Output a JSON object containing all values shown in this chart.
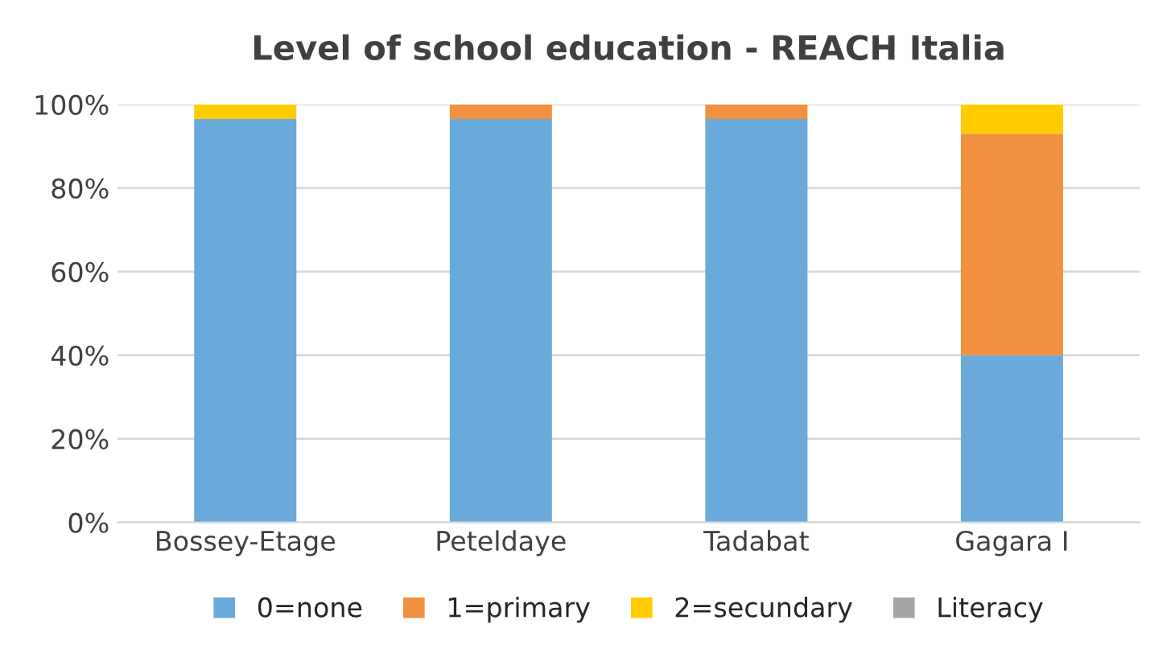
{
  "chart_data": {
    "type": "bar",
    "title": "Level of school education - REACH Italia",
    "stacked": true,
    "categories": [
      "Bossey-Etage",
      "Peteldaye",
      "Tadabat",
      "Gagara I"
    ],
    "series": [
      {
        "name": "0=none",
        "color": "#6aaadb",
        "values": [
          96.5,
          96.5,
          96.5,
          40
        ]
      },
      {
        "name": "1=primary",
        "color": "#f09140",
        "values": [
          null,
          3.5,
          3.5,
          53
        ]
      },
      {
        "name": "2=secundary",
        "color": "#ffcc00",
        "values": [
          3.5,
          null,
          null,
          7
        ]
      },
      {
        "name": "Literacy",
        "color": "#a5a5a5",
        "values": [
          null,
          null,
          null,
          null
        ]
      }
    ],
    "ylim": [
      0,
      100
    ],
    "yticks": [
      {
        "value": 0,
        "label": "0%"
      },
      {
        "value": 20,
        "label": "20%"
      },
      {
        "value": 40,
        "label": "40%"
      },
      {
        "value": 60,
        "label": "60%"
      },
      {
        "value": 80,
        "label": "80%"
      },
      {
        "value": 100,
        "label": "100%"
      }
    ],
    "grid": "y",
    "legend": "bottom"
  }
}
